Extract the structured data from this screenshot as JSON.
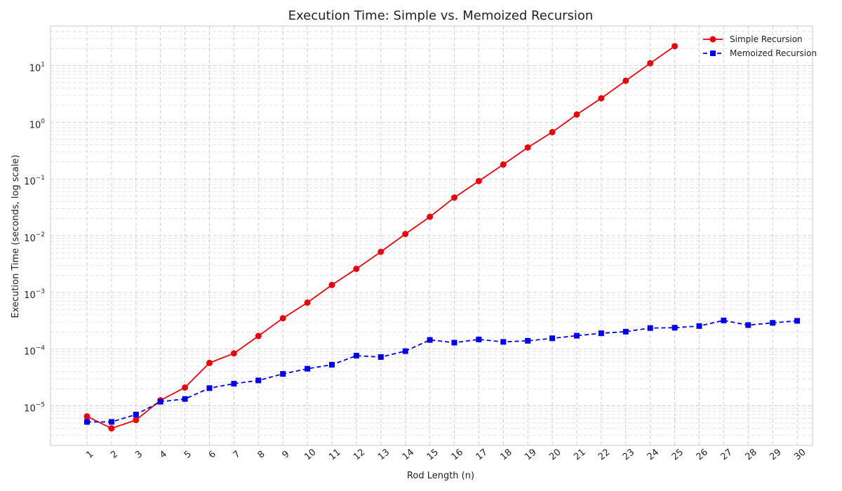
{
  "chart_data": {
    "type": "line",
    "title": "Execution Time: Simple vs. Memoized Recursion",
    "xlabel": "Rod Length (n)",
    "ylabel": "Execution Time (seconds, log scale)",
    "yscale": "log",
    "ylim": [
      2e-06,
      50
    ],
    "x": [
      1,
      2,
      3,
      4,
      5,
      6,
      7,
      8,
      9,
      10,
      11,
      12,
      13,
      14,
      15,
      16,
      17,
      18,
      19,
      20,
      21,
      22,
      23,
      24,
      25,
      26,
      27,
      28,
      29,
      30
    ],
    "y_ticks": [
      {
        "exp": "-5",
        "value": 1e-05
      },
      {
        "exp": "-4",
        "value": 0.0001
      },
      {
        "exp": "-3",
        "value": 0.001
      },
      {
        "exp": "-2",
        "value": 0.01
      },
      {
        "exp": "-1",
        "value": 0.1
      },
      {
        "exp": "0",
        "value": 1
      },
      {
        "exp": "1",
        "value": 10
      }
    ],
    "legend_position": "top-right",
    "series": [
      {
        "name": "Simple Recursion",
        "color": "#e8000b",
        "marker": "circle",
        "linestyle": "solid",
        "x": [
          1,
          2,
          3,
          4,
          5,
          6,
          7,
          8,
          9,
          10,
          11,
          12,
          13,
          14,
          15,
          16,
          17,
          18,
          19,
          20,
          21,
          22,
          23,
          24,
          25
        ],
        "values": [
          6.5e-06,
          4e-06,
          5.6e-06,
          1.25e-05,
          2.1e-05,
          5.7e-05,
          8.4e-05,
          0.00017,
          0.00035,
          0.00066,
          0.00135,
          0.0026,
          0.0052,
          0.0107,
          0.0215,
          0.047,
          0.092,
          0.18,
          0.36,
          0.67,
          1.37,
          2.65,
          5.4,
          11.0,
          22.0
        ]
      },
      {
        "name": "Memoized Recursion",
        "color": "#0000e6",
        "marker": "square",
        "linestyle": "dashed",
        "x": [
          1,
          2,
          3,
          4,
          5,
          6,
          7,
          8,
          9,
          10,
          11,
          12,
          13,
          14,
          15,
          16,
          17,
          18,
          19,
          20,
          21,
          22,
          23,
          24,
          25,
          26,
          27,
          28,
          29,
          30
        ],
        "values": [
          5.2e-06,
          5.2e-06,
          7e-06,
          1.18e-05,
          1.32e-05,
          2.05e-05,
          2.45e-05,
          2.8e-05,
          3.65e-05,
          4.5e-05,
          5.3e-05,
          7.65e-05,
          7.25e-05,
          9.2e-05,
          0.000145,
          0.00013,
          0.000148,
          0.000134,
          0.00014,
          0.000155,
          0.000172,
          0.00019,
          0.000203,
          0.000235,
          0.000238,
          0.000255,
          0.00032,
          0.000265,
          0.00029,
          0.000315
        ]
      }
    ]
  }
}
